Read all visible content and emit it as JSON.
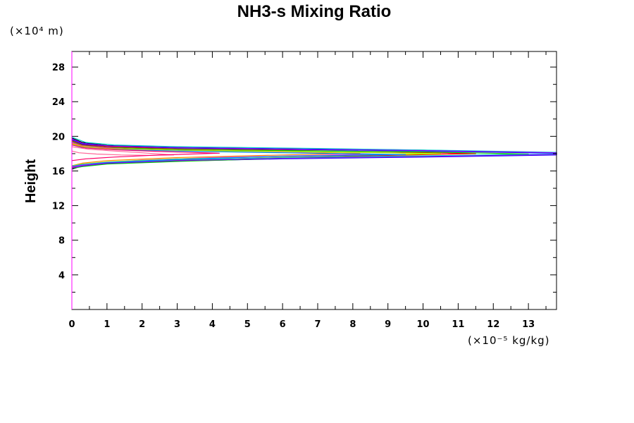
{
  "chart_data": {
    "type": "line",
    "title": "NH3-s Mixing Ratio",
    "ylabel": "Height",
    "y_unit": "(×10⁴ m)",
    "x_unit": "(×10⁻⁵ kg/kg)",
    "xlim": [
      0,
      13.8
    ],
    "ylim": [
      0,
      29.8
    ],
    "x_ticks": [
      0,
      1,
      2,
      3,
      4,
      5,
      6,
      7,
      8,
      9,
      10,
      11,
      12,
      13
    ],
    "y_ticks": [
      4,
      8,
      12,
      16,
      20,
      24,
      28
    ],
    "grid": false,
    "legend": "none",
    "series": [
      {
        "color": "#000000",
        "points": [
          [
            0,
            19.8
          ],
          [
            0.3,
            19.3
          ],
          [
            1,
            18.95
          ],
          [
            3,
            18.75
          ],
          [
            6,
            18.6
          ],
          [
            10,
            18.4
          ],
          [
            13.8,
            18.1
          ],
          [
            13.8,
            17.9
          ],
          [
            10,
            17.7
          ],
          [
            6,
            17.5
          ],
          [
            3,
            17.2
          ],
          [
            1,
            16.9
          ],
          [
            0.3,
            16.6
          ],
          [
            0,
            16.2
          ]
        ]
      },
      {
        "color": "#0000ff",
        "points": [
          [
            0,
            19.6
          ],
          [
            0.3,
            19.1
          ],
          [
            1,
            18.85
          ],
          [
            3,
            18.65
          ],
          [
            6,
            18.5
          ],
          [
            10,
            18.3
          ],
          [
            13.8,
            18.05
          ],
          [
            13.8,
            17.85
          ],
          [
            10,
            17.6
          ],
          [
            6,
            17.4
          ],
          [
            3,
            17.15
          ],
          [
            1,
            16.85
          ],
          [
            0.3,
            16.55
          ],
          [
            0,
            16.3
          ]
        ]
      },
      {
        "color": "#ff0000",
        "points": [
          [
            0,
            19.5
          ],
          [
            0.3,
            19.0
          ],
          [
            1,
            18.8
          ],
          [
            3,
            18.55
          ],
          [
            6,
            18.4
          ],
          [
            9,
            18.2
          ],
          [
            11.5,
            18.0
          ],
          [
            9,
            17.8
          ],
          [
            6,
            17.55
          ],
          [
            3,
            17.25
          ],
          [
            1,
            16.95
          ],
          [
            0.3,
            16.7
          ],
          [
            0,
            16.4
          ]
        ]
      },
      {
        "color": "#00cc00",
        "points": [
          [
            0,
            19.4
          ],
          [
            0.3,
            18.95
          ],
          [
            1,
            18.7
          ],
          [
            3,
            18.5
          ],
          [
            6,
            18.35
          ],
          [
            10,
            18.2
          ],
          [
            13,
            17.95
          ],
          [
            10,
            17.7
          ],
          [
            6,
            17.45
          ],
          [
            3,
            17.1
          ],
          [
            1,
            16.8
          ],
          [
            0.3,
            16.5
          ],
          [
            0,
            16.3
          ]
        ]
      },
      {
        "color": "#00cccc",
        "points": [
          [
            0,
            19.9
          ],
          [
            0.4,
            19.3
          ],
          [
            1.2,
            19.0
          ],
          [
            3,
            18.8
          ],
          [
            7,
            18.6
          ],
          [
            11,
            18.35
          ],
          [
            13.8,
            18.15
          ],
          [
            13.8,
            17.95
          ],
          [
            11,
            17.8
          ],
          [
            7,
            17.6
          ],
          [
            3,
            17.3
          ],
          [
            1.2,
            17.0
          ],
          [
            0.4,
            16.7
          ],
          [
            0,
            16.5
          ]
        ]
      },
      {
        "color": "#ff00ff",
        "points": [
          [
            0,
            19.3
          ],
          [
            0.3,
            18.9
          ],
          [
            1,
            18.65
          ],
          [
            2,
            18.45
          ],
          [
            4,
            18.3
          ],
          [
            7,
            18.15
          ],
          [
            8.5,
            17.95
          ],
          [
            7,
            17.8
          ],
          [
            4,
            17.55
          ],
          [
            2,
            17.25
          ],
          [
            1,
            17.0
          ],
          [
            0.3,
            16.7
          ],
          [
            0,
            16.5
          ]
        ]
      },
      {
        "color": "#ff8800",
        "points": [
          [
            0,
            19.2
          ],
          [
            0.3,
            18.85
          ],
          [
            1,
            18.6
          ],
          [
            3,
            18.4
          ],
          [
            6,
            18.25
          ],
          [
            8.2,
            18.05
          ],
          [
            6,
            17.85
          ],
          [
            3,
            17.55
          ],
          [
            1,
            17.2
          ],
          [
            0.3,
            16.9
          ],
          [
            0,
            16.6
          ]
        ]
      },
      {
        "color": "#aaff00",
        "points": [
          [
            0,
            19.1
          ],
          [
            0.3,
            18.8
          ],
          [
            1,
            18.55
          ],
          [
            3,
            18.35
          ],
          [
            7,
            18.2
          ],
          [
            10.5,
            18.0
          ],
          [
            7,
            17.75
          ],
          [
            3,
            17.4
          ],
          [
            1,
            17.05
          ],
          [
            0.3,
            16.8
          ],
          [
            0,
            16.6
          ]
        ]
      },
      {
        "color": "#0088ff",
        "points": [
          [
            0,
            19.0
          ],
          [
            0.3,
            18.7
          ],
          [
            1,
            18.5
          ],
          [
            3,
            18.3
          ],
          [
            6,
            18.1
          ],
          [
            9.5,
            17.9
          ],
          [
            6,
            17.7
          ],
          [
            3,
            17.35
          ],
          [
            1,
            17.0
          ],
          [
            0.3,
            16.75
          ],
          [
            0,
            16.55
          ]
        ]
      },
      {
        "color": "#8800ff",
        "points": [
          [
            0,
            19.7
          ],
          [
            0.3,
            19.2
          ],
          [
            1,
            18.9
          ],
          [
            3,
            18.7
          ],
          [
            6,
            18.55
          ],
          [
            10,
            18.35
          ],
          [
            13.8,
            18.1
          ],
          [
            13.8,
            17.9
          ],
          [
            10,
            17.65
          ],
          [
            6,
            17.45
          ],
          [
            3,
            17.2
          ],
          [
            1,
            16.9
          ],
          [
            0.3,
            16.6
          ],
          [
            0,
            16.35
          ]
        ]
      },
      {
        "color": "#ff6699",
        "points": [
          [
            0,
            18.8
          ],
          [
            0.5,
            18.5
          ],
          [
            1.2,
            18.3
          ],
          [
            2,
            18.1
          ],
          [
            2.9,
            17.85
          ],
          [
            2.2,
            17.8
          ],
          [
            1.4,
            17.85
          ],
          [
            0.7,
            17.95
          ],
          [
            0.2,
            18.1
          ],
          [
            0,
            18.3
          ]
        ]
      },
      {
        "color": "#ff0066",
        "points": [
          [
            0,
            19.0
          ],
          [
            0.4,
            18.65
          ],
          [
            1.2,
            18.45
          ],
          [
            2.5,
            18.25
          ],
          [
            4.2,
            18.05
          ],
          [
            2.5,
            17.85
          ],
          [
            1.2,
            17.6
          ],
          [
            0.4,
            17.4
          ],
          [
            0,
            17.2
          ]
        ]
      }
    ]
  }
}
